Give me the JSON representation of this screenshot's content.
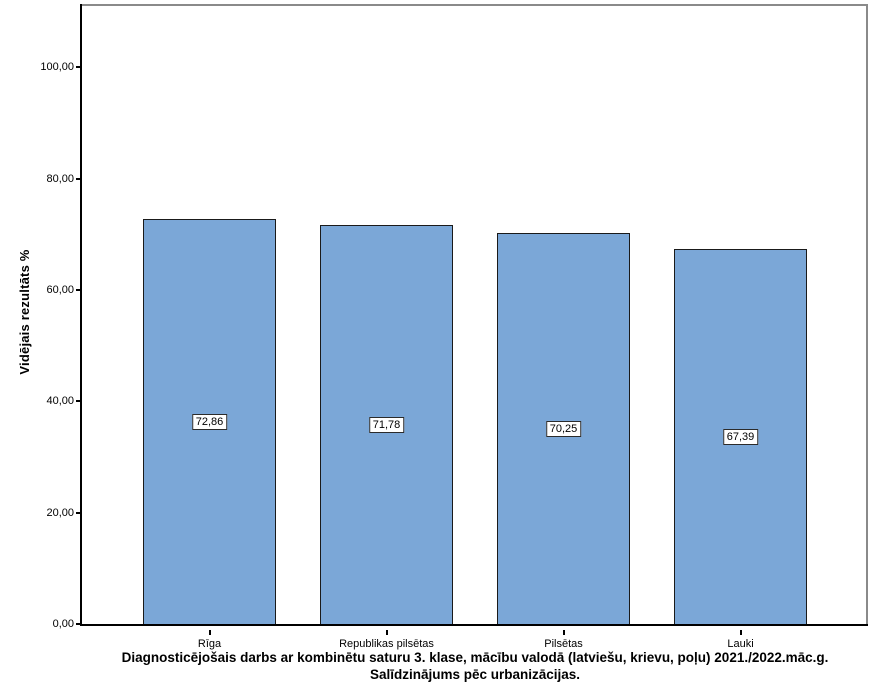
{
  "chart_data": {
    "type": "bar",
    "categories": [
      "Rīga",
      "Republikas pilsētas",
      "Pilsētas",
      "Lauki"
    ],
    "values": [
      72.86,
      71.78,
      70.25,
      67.39
    ],
    "value_labels": [
      "72,86",
      "71,78",
      "70,25",
      "67,39"
    ],
    "series": [
      {
        "name": "Vidējais rezultāts %",
        "values": [
          72.86,
          71.78,
          70.25,
          67.39
        ]
      }
    ],
    "title": "Diagnosticējošais darbs ar kombinētu saturu 3. klase, mācību valodā (latviešu, krievu, poļu) 2021./2022.māc.g. Salīdzinājums pēc urbanizācijas.",
    "title_lines": [
      "Diagnosticējošais darbs ar kombinētu saturu 3. klase, mācību valodā (latviešu, krievu, poļu) 2021./2022.māc.g.",
      "Salīdzinājums pēc urbanizācijas."
    ],
    "xlabel": "",
    "ylabel": "Vidējais rezultāts %",
    "ylim": [
      0,
      111.4
    ],
    "yticks": [
      {
        "value": 0,
        "label": "0,00"
      },
      {
        "value": 20,
        "label": "20,00"
      },
      {
        "value": 40,
        "label": "40,00"
      },
      {
        "value": 60,
        "label": "60,00"
      },
      {
        "value": 80,
        "label": "80,00"
      },
      {
        "value": 100,
        "label": "100,00"
      }
    ],
    "grid": false,
    "legend_position": "none",
    "bar_fill_color": "#7BA7D7",
    "bar_border_color": "#1a1a1a",
    "value_box_bg_color": "#ffffff",
    "value_box_border_color": "#2b2b2b"
  }
}
